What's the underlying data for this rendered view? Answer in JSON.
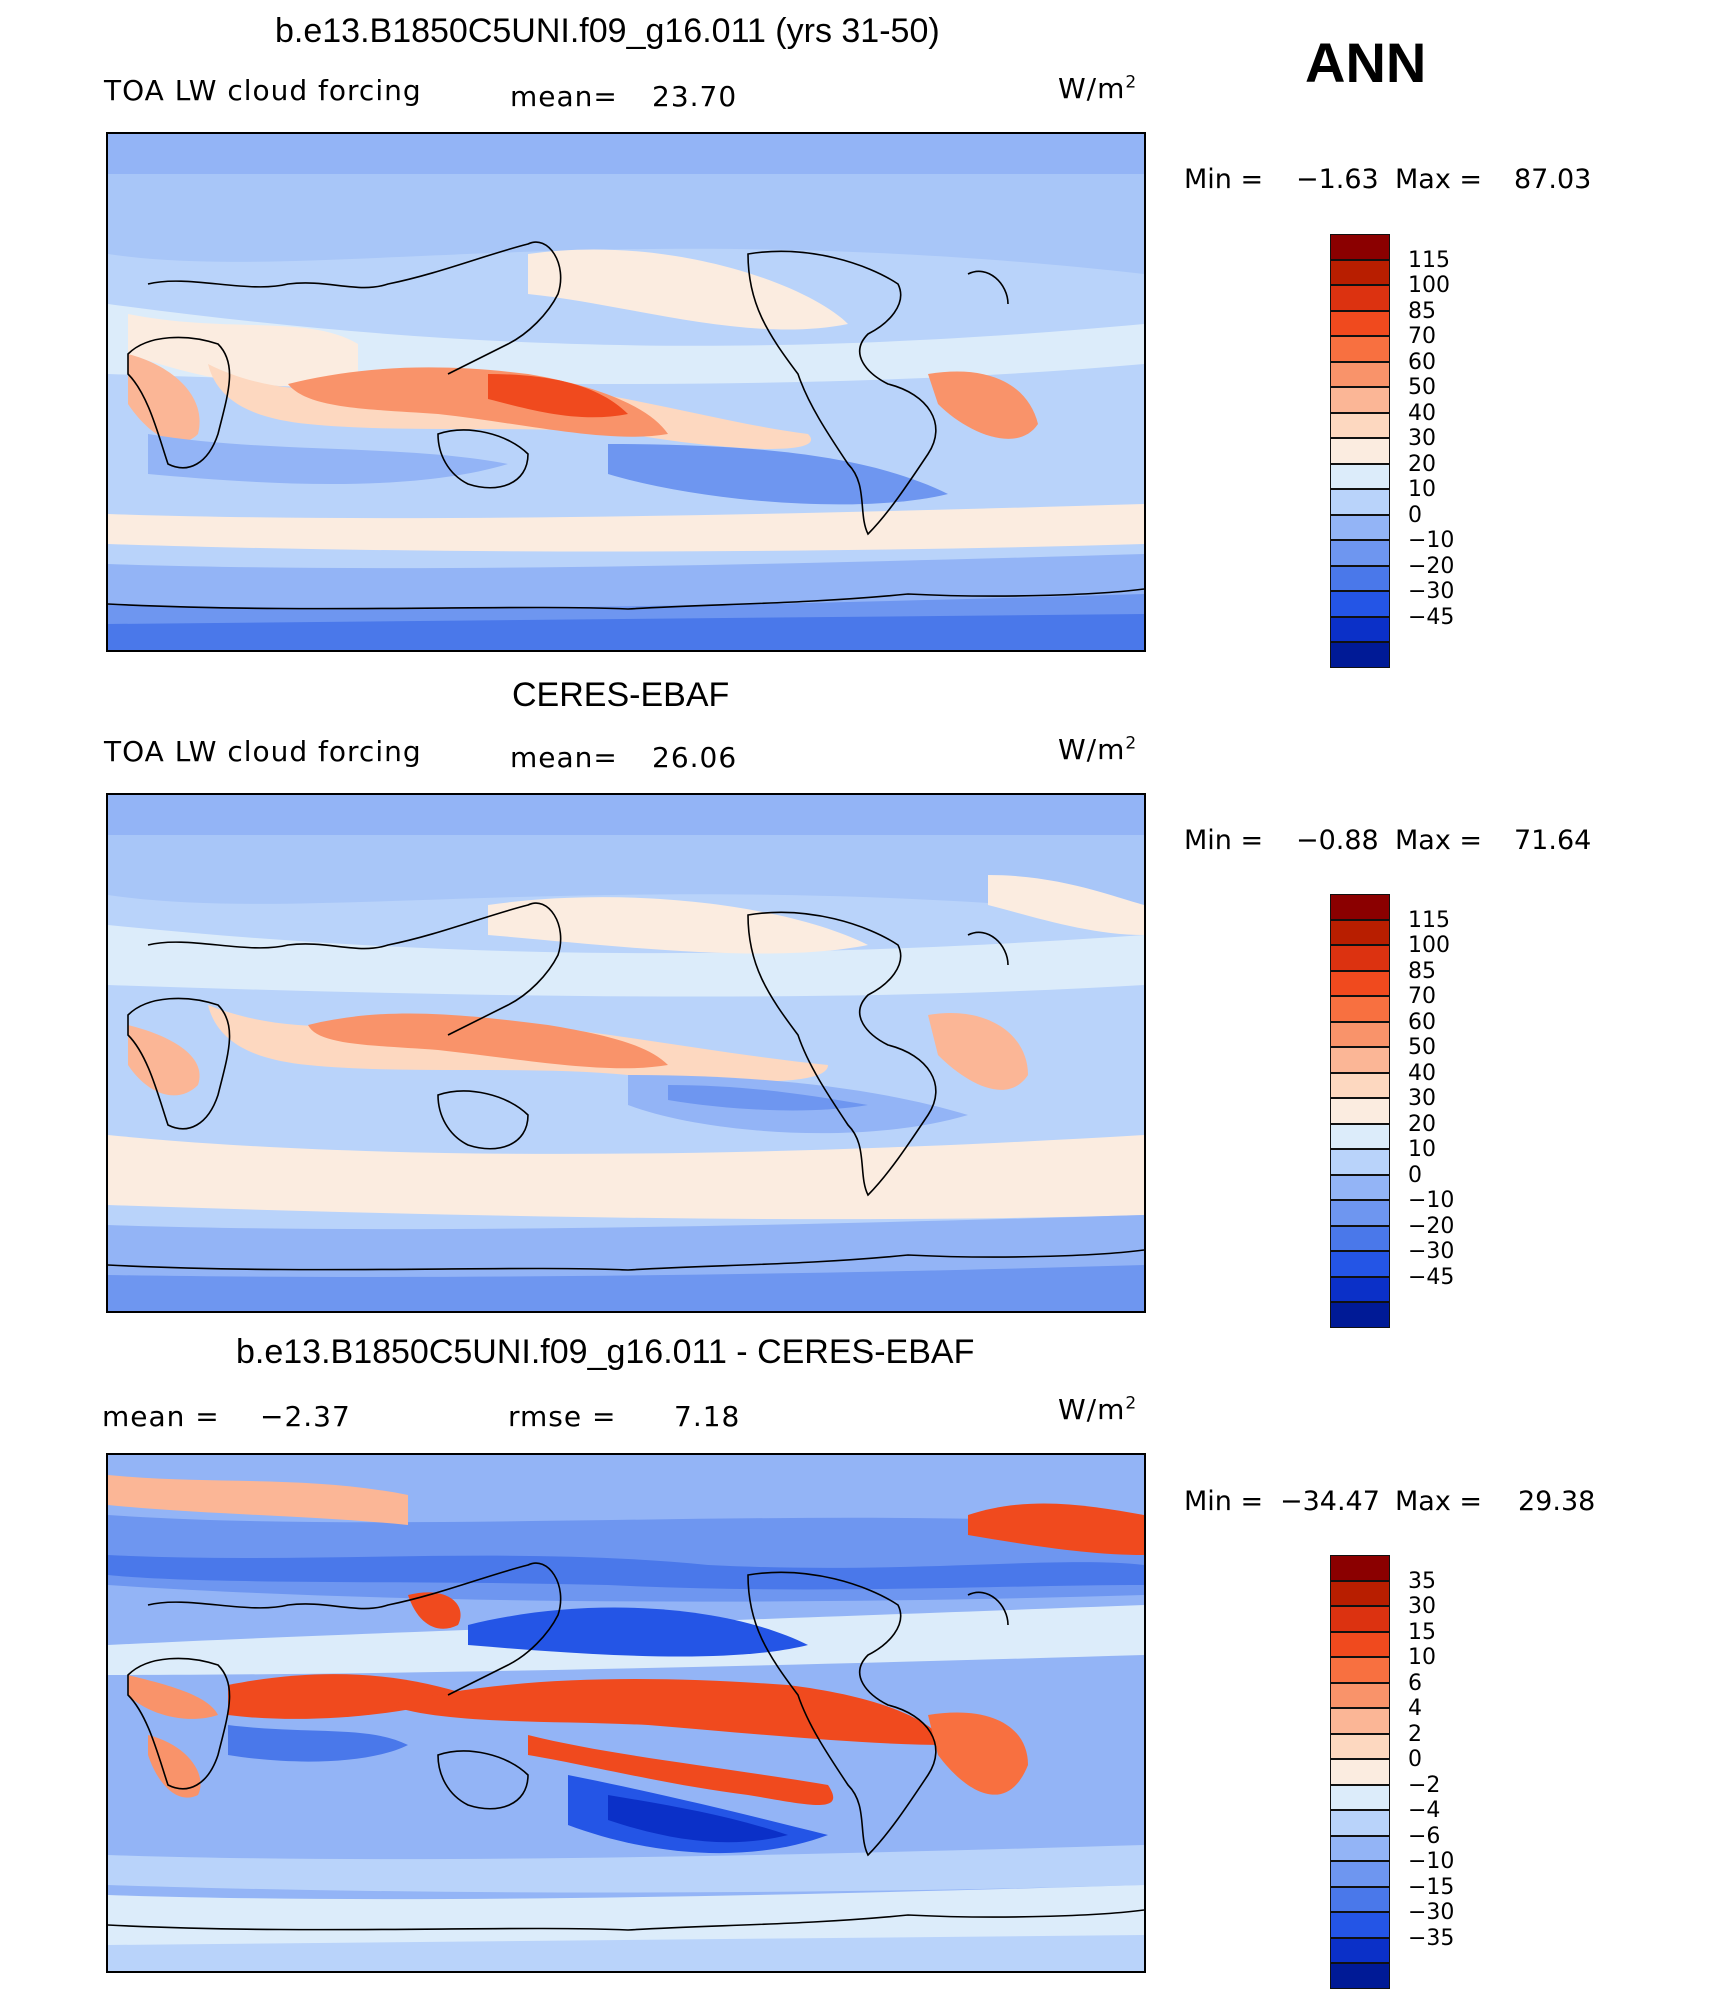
{
  "season": "ANN",
  "units": "W/m",
  "units_sup": "2",
  "panels": [
    {
      "title": "b.e13.B1850C5UNI.f09_g16.011 (yrs 31-50)",
      "left_label": "TOA LW cloud forcing",
      "stat_label": "mean=",
      "stat_value": "23.70",
      "min_label": "Min =",
      "min_value": "−1.63",
      "max_label": "Max =",
      "max_value": "87.03",
      "colorbar": {
        "labels": [
          "115",
          "100",
          "85",
          "70",
          "60",
          "50",
          "40",
          "30",
          "20",
          "10",
          "0",
          "−10",
          "−20",
          "−30",
          "−45"
        ],
        "colors": [
          "#8b0000",
          "#b81e00",
          "#dc3210",
          "#f04a1e",
          "#f87040",
          "#f9936a",
          "#fbb696",
          "#fdd8c0",
          "#fbece0",
          "#dcecfa",
          "#b9d3fa",
          "#93b4f6",
          "#6e96f0",
          "#4a78ea",
          "#2455e6",
          "#0b30c8",
          "#001a96"
        ]
      }
    },
    {
      "title": "CERES-EBAF",
      "left_label": "TOA LW cloud forcing",
      "stat_label": "mean=",
      "stat_value": "26.06",
      "min_label": "Min =",
      "min_value": "−0.88",
      "max_label": "Max =",
      "max_value": "71.64",
      "colorbar": {
        "labels": [
          "115",
          "100",
          "85",
          "70",
          "60",
          "50",
          "40",
          "30",
          "20",
          "10",
          "0",
          "−10",
          "−20",
          "−30",
          "−45"
        ],
        "colors": [
          "#8b0000",
          "#b81e00",
          "#dc3210",
          "#f04a1e",
          "#f87040",
          "#f9936a",
          "#fbb696",
          "#fdd8c0",
          "#fbece0",
          "#dcecfa",
          "#b9d3fa",
          "#93b4f6",
          "#6e96f0",
          "#4a78ea",
          "#2455e6",
          "#0b30c8",
          "#001a96"
        ]
      }
    },
    {
      "title": "b.e13.B1850C5UNI.f09_g16.011 - CERES-EBAF",
      "left_label": "mean =",
      "left_value": "−2.37",
      "stat_label": "rmse =",
      "stat_value": "7.18",
      "min_label": "Min =",
      "min_value": "−34.47",
      "max_label": "Max =",
      "max_value": "29.38",
      "colorbar": {
        "labels": [
          "35",
          "30",
          "15",
          "10",
          "6",
          "4",
          "2",
          "0",
          "−2",
          "−4",
          "−6",
          "−10",
          "−15",
          "−30",
          "−35"
        ],
        "colors": [
          "#8b0000",
          "#b81e00",
          "#dc3210",
          "#f04a1e",
          "#f87040",
          "#f9936a",
          "#fbb696",
          "#fdd8c0",
          "#fbece0",
          "#dcecfa",
          "#b9d3fa",
          "#93b4f6",
          "#6e96f0",
          "#4a78ea",
          "#2455e6",
          "#0b30c8",
          "#001a96"
        ]
      }
    }
  ]
}
